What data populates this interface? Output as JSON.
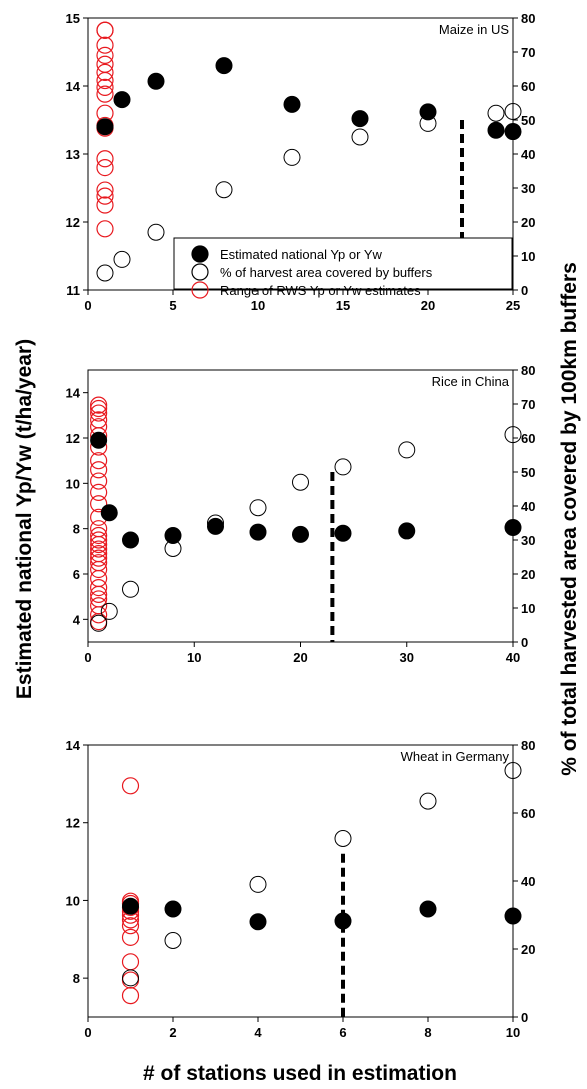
{
  "chart_data": {
    "type": "scatter",
    "ylabel_left": "Estimated national Yp/Yw (t/ha/year)",
    "ylabel_right": "% of total harvested area covered by 100km buffers",
    "xlabel": "# of stations used in estimation",
    "legend": {
      "placement": "inside panel 1, bottom-right",
      "entries": [
        {
          "label": "Estimated national Yp or Yw",
          "marker": "filled-black-circle"
        },
        {
          "label": "% of harvest area covered by buffers",
          "marker": "open-black-circle"
        },
        {
          "label": "Range of RWS Yp or Yw estimates",
          "marker": "open-red-circle"
        }
      ]
    },
    "colors": {
      "estimated": "#000000",
      "coverage": "#000000",
      "range": "#e8191f",
      "dashed_line": "#000000"
    },
    "panels": [
      {
        "title": "Maize in US",
        "xlim": [
          0,
          25
        ],
        "xticks": [
          "0",
          "5",
          "10",
          "15",
          "20",
          "25"
        ],
        "xtick_values": [
          0,
          5,
          10,
          15,
          20,
          25
        ],
        "ylim_left": [
          11,
          15
        ],
        "yticks_left": [
          "11",
          "12",
          "13",
          "14",
          "15"
        ],
        "ytick_left_values": [
          11,
          12,
          13,
          14,
          15
        ],
        "ylim_right": [
          0,
          80
        ],
        "yticks_right": [
          "0",
          "10",
          "20",
          "30",
          "40",
          "50",
          "60",
          "70",
          "80"
        ],
        "ytick_right_values": [
          0,
          10,
          20,
          30,
          40,
          50,
          60,
          70,
          80
        ],
        "estimated": {
          "x": [
            1,
            2,
            4,
            8,
            12,
            16,
            20,
            24,
            25
          ],
          "y": [
            13.4,
            13.8,
            14.07,
            14.3,
            13.73,
            13.52,
            13.62,
            13.35,
            13.33
          ]
        },
        "coverage": {
          "x": [
            1,
            2,
            4,
            8,
            12,
            16,
            20,
            24,
            25
          ],
          "y": [
            5,
            9,
            17,
            29.5,
            39,
            45,
            49,
            52,
            52.5
          ]
        },
        "range": {
          "x": [
            1,
            1,
            1,
            1,
            1,
            1,
            1,
            1,
            1,
            1,
            1,
            1,
            1,
            1,
            1,
            1,
            1,
            1
          ],
          "y": [
            11.9,
            12.25,
            12.38,
            12.47,
            12.8,
            12.93,
            13.38,
            13.42,
            13.6,
            13.88,
            13.98,
            14.08,
            14.2,
            14.32,
            14.45,
            14.6,
            14.82,
            14.82
          ]
        },
        "dashed_line": {
          "x": 22,
          "y_top_left": 13.5
        }
      },
      {
        "title": "Rice in China",
        "xlim": [
          0,
          40
        ],
        "xticks": [
          "0",
          "10",
          "20",
          "30",
          "40"
        ],
        "xtick_values": [
          0,
          10,
          20,
          30,
          40
        ],
        "ylim_left": [
          3,
          15
        ],
        "yticks_left": [
          "4",
          "6",
          "8",
          "10",
          "12",
          "14"
        ],
        "ytick_left_values": [
          4,
          6,
          8,
          10,
          12,
          14
        ],
        "ylim_right": [
          0,
          80
        ],
        "yticks_right": [
          "0",
          "10",
          "20",
          "30",
          "40",
          "50",
          "60",
          "70",
          "80"
        ],
        "ytick_right_values": [
          0,
          10,
          20,
          30,
          40,
          50,
          60,
          70,
          80
        ],
        "estimated": {
          "x": [
            1,
            2,
            4,
            8,
            12,
            16,
            20,
            24,
            30,
            40
          ],
          "y": [
            11.9,
            8.7,
            7.5,
            7.7,
            8.1,
            7.85,
            7.75,
            7.8,
            7.9,
            8.05
          ]
        },
        "coverage": {
          "x": [
            1,
            2,
            4,
            8,
            12,
            16,
            20,
            24,
            30,
            40
          ],
          "y": [
            5.5,
            9,
            15.5,
            27.5,
            35,
            39.5,
            47,
            51.5,
            56.5,
            61
          ]
        },
        "range": {
          "x": [
            1,
            1,
            1,
            1,
            1,
            1,
            1,
            1,
            1,
            1,
            1,
            1,
            1,
            1,
            1,
            1,
            1,
            1,
            1,
            1,
            1,
            1,
            1,
            1,
            1,
            1,
            1,
            1,
            1
          ],
          "y": [
            3.9,
            4.2,
            4.6,
            4.9,
            5.1,
            5.4,
            5.8,
            6.2,
            6.5,
            6.7,
            6.9,
            7.1,
            7.3,
            7.5,
            7.7,
            8.0,
            8.5,
            9.1,
            9.6,
            10.1,
            10.6,
            11.0,
            11.6,
            12.1,
            12.5,
            12.8,
            13.1,
            13.3,
            13.45
          ]
        },
        "dashed_line": {
          "x": 23,
          "y_top_left": 10.5
        }
      },
      {
        "title": "Wheat in Germany",
        "xlim": [
          0,
          10
        ],
        "xticks": [
          "0",
          "2",
          "4",
          "6",
          "8",
          "10"
        ],
        "xtick_values": [
          0,
          2,
          4,
          6,
          8,
          10
        ],
        "ylim_left": [
          7,
          14
        ],
        "yticks_left": [
          "8",
          "10",
          "12",
          "14"
        ],
        "ytick_left_values": [
          8,
          10,
          12,
          14
        ],
        "ylim_right": [
          0,
          80
        ],
        "yticks_right": [
          "0",
          "20",
          "40",
          "60",
          "80"
        ],
        "ytick_right_values": [
          0,
          20,
          40,
          60,
          80
        ],
        "estimated": {
          "x": [
            1,
            2,
            4,
            6,
            8,
            10
          ],
          "y": [
            9.85,
            9.78,
            9.45,
            9.47,
            9.78,
            9.6
          ]
        },
        "coverage": {
          "x": [
            1,
            2,
            4,
            6,
            8,
            10
          ],
          "y": [
            11.5,
            22.5,
            39,
            52.5,
            63.5,
            72.5
          ]
        },
        "range": {
          "x": [
            1,
            1,
            1,
            1,
            1,
            1,
            1,
            1,
            1,
            1,
            1,
            1
          ],
          "y": [
            7.55,
            7.95,
            8.42,
            9.05,
            9.35,
            9.5,
            9.62,
            9.72,
            9.82,
            9.92,
            9.98,
            12.95
          ]
        },
        "dashed_line": {
          "x": 6,
          "y_top_left": 11.2
        }
      }
    ]
  }
}
